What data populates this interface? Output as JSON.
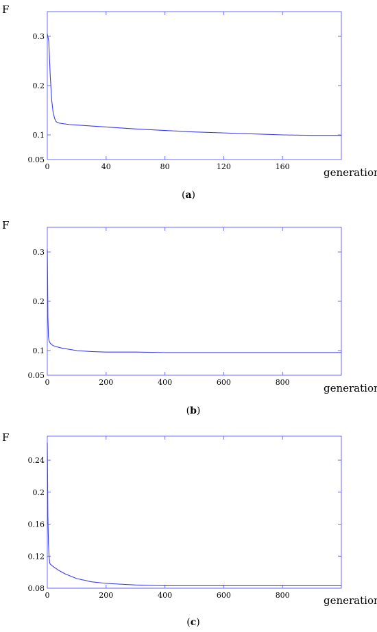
{
  "chart_data": [
    {
      "type": "line",
      "panel_label": "a",
      "ylabel": "F",
      "xlabel": "generation",
      "xlim": [
        0,
        200
      ],
      "ylim": [
        0.05,
        0.35
      ],
      "xticks": [
        0,
        40,
        80,
        120,
        160
      ],
      "yticks": [
        0.05,
        0.1,
        0.2,
        0.3
      ],
      "ytick_labels": [
        "0.05",
        "0.1",
        "0.2",
        "0.3"
      ],
      "series": [
        {
          "x": [
            0,
            1,
            2,
            3,
            4,
            5,
            6,
            7,
            8,
            10,
            15,
            20,
            30,
            40,
            60,
            80,
            100,
            120,
            140,
            160,
            180,
            200
          ],
          "values": [
            0.305,
            0.29,
            0.22,
            0.17,
            0.145,
            0.133,
            0.127,
            0.125,
            0.124,
            0.123,
            0.121,
            0.12,
            0.118,
            0.116,
            0.112,
            0.109,
            0.106,
            0.104,
            0.102,
            0.1,
            0.099,
            0.099
          ]
        }
      ]
    },
    {
      "type": "line",
      "panel_label": "b",
      "ylabel": "F",
      "xlabel": "generation",
      "xlim": [
        0,
        1000
      ],
      "ylim": [
        0.05,
        0.35
      ],
      "xticks": [
        0,
        200,
        400,
        600,
        800
      ],
      "yticks": [
        0.05,
        0.1,
        0.2,
        0.3
      ],
      "ytick_labels": [
        "0.05",
        "0.1",
        "0.2",
        "0.3"
      ],
      "series": [
        {
          "x": [
            0,
            1,
            2,
            4,
            6,
            8,
            10,
            15,
            20,
            30,
            50,
            100,
            150,
            200,
            300,
            400,
            600,
            800,
            1000
          ],
          "values": [
            0.305,
            0.25,
            0.17,
            0.128,
            0.12,
            0.117,
            0.115,
            0.112,
            0.11,
            0.108,
            0.105,
            0.1,
            0.098,
            0.097,
            0.097,
            0.096,
            0.096,
            0.096,
            0.096
          ]
        }
      ]
    },
    {
      "type": "line",
      "panel_label": "c",
      "ylabel": "F",
      "xlabel": "generation",
      "xlim": [
        0,
        1000
      ],
      "ylim": [
        0.08,
        0.27
      ],
      "xticks": [
        0,
        200,
        400,
        600,
        800
      ],
      "yticks": [
        0.08,
        0.12,
        0.16,
        0.2,
        0.24
      ],
      "ytick_labels": [
        "0.08",
        "0.12",
        "0.16",
        "0.2",
        "0.24"
      ],
      "series": [
        {
          "x": [
            0,
            1,
            2,
            4,
            6,
            8,
            10,
            20,
            40,
            60,
            100,
            150,
            200,
            300,
            400,
            600,
            800,
            1000
          ],
          "values": [
            0.262,
            0.22,
            0.17,
            0.135,
            0.12,
            0.112,
            0.11,
            0.107,
            0.102,
            0.098,
            0.092,
            0.088,
            0.086,
            0.084,
            0.083,
            0.083,
            0.083,
            0.083
          ]
        }
      ]
    }
  ]
}
